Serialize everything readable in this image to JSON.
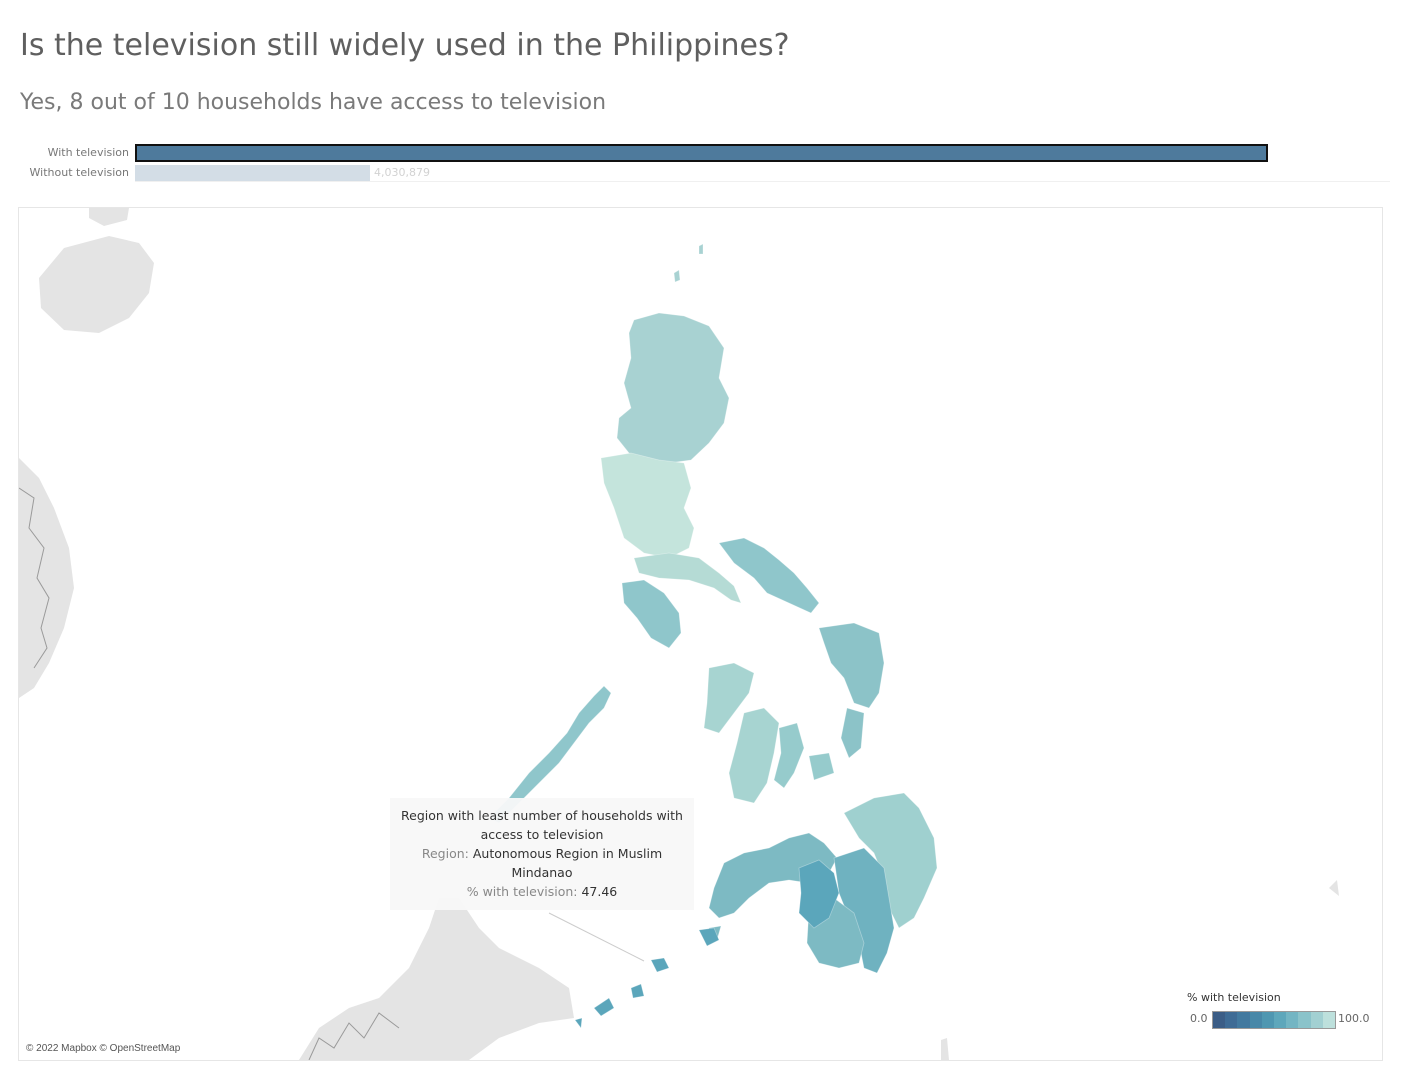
{
  "title": "Is the television still widely used in the Philippines?",
  "subtitle": "Yes, 8 out of 10 households have access to television",
  "access_bars": {
    "rows": [
      {
        "label": "With television",
        "share_of_max": 1.0,
        "value_label": "",
        "color": "#4e7a9c",
        "selected": true
      },
      {
        "label": "Without television",
        "share_of_max": 0.207,
        "value_label": "4,030,879",
        "color": "#d3dde6",
        "selected": false
      }
    ]
  },
  "tooltip": {
    "heading": "Region with least number of households with access to television",
    "region_label": "Region:",
    "region_value": "Autonomous Region in Muslim Mindanao",
    "pct_label": "% with television:",
    "pct_value": "47.46"
  },
  "legend": {
    "title": "% with television",
    "min_label": "0.0",
    "max_label": "100.0",
    "color_ramp": [
      "#3b5d86",
      "#3e6b95",
      "#42799f",
      "#4888a8",
      "#4f97b1",
      "#5ea7bb",
      "#73b5c3",
      "#8ac3ca",
      "#a2d0d2",
      "#bde0dc"
    ]
  },
  "map": {
    "attribution": "© 2022 Mapbox © OpenStreetMap",
    "colors": {
      "land_background": "#e4e4e4",
      "luzon_north": "#a8d2d2",
      "luzon_central": "#c4e4dc",
      "luzon_south": "#b5dbd5",
      "mimaropa": "#8fc6cb",
      "visayas_west": "#a7d4d1",
      "visayas_central": "#96cbcc",
      "visayas_east": "#8cc3c8",
      "mindanao_north": "#7dbac3",
      "mindanao_davao": "#6fb2c0",
      "armm": "#5ba6bb",
      "caraga": "#9fd0cf"
    }
  }
}
